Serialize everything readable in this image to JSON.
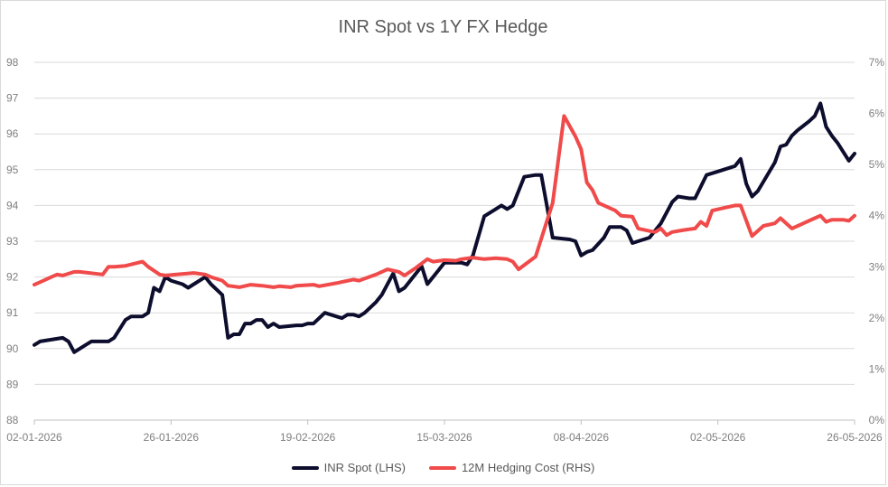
{
  "chart_data": {
    "type": "line",
    "title": "INR Spot vs 1Y FX Hedge",
    "x_tick_labels": [
      "02-01-2026",
      "26-01-2026",
      "19-02-2026",
      "15-03-2026",
      "08-04-2026",
      "02-05-2026",
      "26-05-2026"
    ],
    "x_range": [
      "2026-01-02",
      "2026-05-26"
    ],
    "y_left": {
      "min": 88,
      "max": 98,
      "step": 1,
      "ticks": [
        "88",
        "89",
        "90",
        "91",
        "92",
        "93",
        "94",
        "95",
        "96",
        "97",
        "98"
      ]
    },
    "y_right": {
      "min": 0,
      "max": 7,
      "step": 1,
      "ticks": [
        "0%",
        "1%",
        "2%",
        "3%",
        "4%",
        "5%",
        "6%",
        "7%"
      ]
    },
    "grid": "horizontal",
    "legend_position": "bottom-center",
    "series": [
      {
        "name": "INR Spot (LHS)",
        "axis": "left",
        "color": "#0d0d2e",
        "points": [
          [
            "2026-01-02",
            90.1
          ],
          [
            "2026-01-03",
            90.2
          ],
          [
            "2026-01-07",
            90.3
          ],
          [
            "2026-01-08",
            90.2
          ],
          [
            "2026-01-09",
            89.9
          ],
          [
            "2026-01-11",
            90.1
          ],
          [
            "2026-01-12",
            90.2
          ],
          [
            "2026-01-14",
            90.2
          ],
          [
            "2026-01-15",
            90.2
          ],
          [
            "2026-01-16",
            90.3
          ],
          [
            "2026-01-18",
            90.8
          ],
          [
            "2026-01-19",
            90.9
          ],
          [
            "2026-01-21",
            90.9
          ],
          [
            "2026-01-22",
            91.0
          ],
          [
            "2026-01-23",
            91.7
          ],
          [
            "2026-01-24",
            91.6
          ],
          [
            "2026-01-25",
            92.0
          ],
          [
            "2026-01-26",
            91.9
          ],
          [
            "2026-01-28",
            91.8
          ],
          [
            "2026-01-29",
            91.7
          ],
          [
            "2026-01-30",
            91.8
          ],
          [
            "2026-02-01",
            92.0
          ],
          [
            "2026-02-02",
            91.8
          ],
          [
            "2026-02-04",
            91.5
          ],
          [
            "2026-02-05",
            90.3
          ],
          [
            "2026-02-06",
            90.4
          ],
          [
            "2026-02-07",
            90.4
          ],
          [
            "2026-02-08",
            90.7
          ],
          [
            "2026-02-09",
            90.7
          ],
          [
            "2026-02-10",
            90.8
          ],
          [
            "2026-02-11",
            90.8
          ],
          [
            "2026-02-12",
            90.6
          ],
          [
            "2026-02-13",
            90.7
          ],
          [
            "2026-02-14",
            90.6
          ],
          [
            "2026-02-17",
            90.65
          ],
          [
            "2026-02-18",
            90.65
          ],
          [
            "2026-02-19",
            90.7
          ],
          [
            "2026-02-20",
            90.7
          ],
          [
            "2026-02-22",
            91.0
          ],
          [
            "2026-02-24",
            90.9
          ],
          [
            "2026-02-25",
            90.85
          ],
          [
            "2026-02-26",
            90.95
          ],
          [
            "2026-02-27",
            90.95
          ],
          [
            "2026-02-28",
            90.9
          ],
          [
            "2026-03-01",
            91.0
          ],
          [
            "2026-03-03",
            91.3
          ],
          [
            "2026-03-04",
            91.5
          ],
          [
            "2026-03-06",
            92.1
          ],
          [
            "2026-03-07",
            91.6
          ],
          [
            "2026-03-08",
            91.7
          ],
          [
            "2026-03-10",
            92.1
          ],
          [
            "2026-03-11",
            92.3
          ],
          [
            "2026-03-12",
            91.8
          ],
          [
            "2026-03-13",
            92.0
          ],
          [
            "2026-03-14",
            92.2
          ],
          [
            "2026-03-15",
            92.4
          ],
          [
            "2026-03-17",
            92.4
          ],
          [
            "2026-03-18",
            92.4
          ],
          [
            "2026-03-19",
            92.35
          ],
          [
            "2026-03-20",
            92.6
          ],
          [
            "2026-03-22",
            93.7
          ],
          [
            "2026-03-24",
            93.9
          ],
          [
            "2026-03-25",
            94.0
          ],
          [
            "2026-03-26",
            93.9
          ],
          [
            "2026-03-27",
            94.0
          ],
          [
            "2026-03-29",
            94.8
          ],
          [
            "2026-03-31",
            94.85
          ],
          [
            "2026-04-01",
            94.85
          ],
          [
            "2026-04-03",
            93.1
          ],
          [
            "2026-04-06",
            93.05
          ],
          [
            "2026-04-07",
            93.0
          ],
          [
            "2026-04-08",
            92.6
          ],
          [
            "2026-04-09",
            92.7
          ],
          [
            "2026-04-10",
            92.75
          ],
          [
            "2026-04-12",
            93.1
          ],
          [
            "2026-04-13",
            93.4
          ],
          [
            "2026-04-15",
            93.4
          ],
          [
            "2026-04-16",
            93.3
          ],
          [
            "2026-04-17",
            92.95
          ],
          [
            "2026-04-19",
            93.05
          ],
          [
            "2026-04-20",
            93.1
          ],
          [
            "2026-04-22",
            93.5
          ],
          [
            "2026-04-24",
            94.1
          ],
          [
            "2026-04-25",
            94.25
          ],
          [
            "2026-04-27",
            94.2
          ],
          [
            "2026-04-28",
            94.2
          ],
          [
            "2026-04-30",
            94.85
          ],
          [
            "2026-05-02",
            94.95
          ],
          [
            "2026-05-04",
            95.05
          ],
          [
            "2026-05-05",
            95.1
          ],
          [
            "2026-05-06",
            95.3
          ],
          [
            "2026-05-07",
            94.6
          ],
          [
            "2026-05-08",
            94.25
          ],
          [
            "2026-05-09",
            94.4
          ],
          [
            "2026-05-12",
            95.2
          ],
          [
            "2026-05-13",
            95.65
          ],
          [
            "2026-05-14",
            95.7
          ],
          [
            "2026-05-15",
            95.95
          ],
          [
            "2026-05-16",
            96.1
          ],
          [
            "2026-05-18",
            96.35
          ],
          [
            "2026-05-19",
            96.5
          ],
          [
            "2026-05-20",
            96.85
          ],
          [
            "2026-05-21",
            96.2
          ],
          [
            "2026-05-22",
            95.95
          ],
          [
            "2026-05-23",
            95.75
          ],
          [
            "2026-05-25",
            95.25
          ],
          [
            "2026-05-26",
            95.45
          ]
        ]
      },
      {
        "name": "12M Hedging Cost (RHS)",
        "axis": "right",
        "color": "#f04a4a",
        "points": [
          [
            "2026-01-02",
            2.65
          ],
          [
            "2026-01-03",
            2.7
          ],
          [
            "2026-01-05",
            2.8
          ],
          [
            "2026-01-06",
            2.85
          ],
          [
            "2026-01-07",
            2.83
          ],
          [
            "2026-01-09",
            2.9
          ],
          [
            "2026-01-10",
            2.9
          ],
          [
            "2026-01-14",
            2.85
          ],
          [
            "2026-01-15",
            3.0
          ],
          [
            "2026-01-16",
            3.0
          ],
          [
            "2026-01-18",
            3.02
          ],
          [
            "2026-01-21",
            3.1
          ],
          [
            "2026-01-22",
            3.0
          ],
          [
            "2026-01-24",
            2.85
          ],
          [
            "2026-01-25",
            2.83
          ],
          [
            "2026-01-27",
            2.85
          ],
          [
            "2026-01-30",
            2.88
          ],
          [
            "2026-02-01",
            2.85
          ],
          [
            "2026-02-02",
            2.8
          ],
          [
            "2026-02-04",
            2.73
          ],
          [
            "2026-02-05",
            2.63
          ],
          [
            "2026-02-07",
            2.6
          ],
          [
            "2026-02-09",
            2.65
          ],
          [
            "2026-02-11",
            2.63
          ],
          [
            "2026-02-13",
            2.6
          ],
          [
            "2026-02-14",
            2.62
          ],
          [
            "2026-02-16",
            2.6
          ],
          [
            "2026-02-17",
            2.63
          ],
          [
            "2026-02-20",
            2.65
          ],
          [
            "2026-02-21",
            2.62
          ],
          [
            "2026-02-24",
            2.68
          ],
          [
            "2026-02-27",
            2.75
          ],
          [
            "2026-02-28",
            2.73
          ],
          [
            "2026-03-03",
            2.85
          ],
          [
            "2026-03-05",
            2.95
          ],
          [
            "2026-03-07",
            2.9
          ],
          [
            "2026-03-08",
            2.83
          ],
          [
            "2026-03-10",
            2.98
          ],
          [
            "2026-03-12",
            3.15
          ],
          [
            "2026-03-13",
            3.1
          ],
          [
            "2026-03-15",
            3.13
          ],
          [
            "2026-03-17",
            3.12
          ],
          [
            "2026-03-18",
            3.15
          ],
          [
            "2026-03-20",
            3.18
          ],
          [
            "2026-03-22",
            3.15
          ],
          [
            "2026-03-24",
            3.17
          ],
          [
            "2026-03-26",
            3.15
          ],
          [
            "2026-03-27",
            3.1
          ],
          [
            "2026-03-28",
            2.95
          ],
          [
            "2026-03-31",
            3.2
          ],
          [
            "2026-04-03",
            4.25
          ],
          [
            "2026-04-05",
            5.95
          ],
          [
            "2026-04-07",
            5.55
          ],
          [
            "2026-04-08",
            5.3
          ],
          [
            "2026-04-09",
            4.65
          ],
          [
            "2026-04-10",
            4.5
          ],
          [
            "2026-04-11",
            4.25
          ],
          [
            "2026-04-14",
            4.1
          ],
          [
            "2026-04-15",
            4.0
          ],
          [
            "2026-04-17",
            3.98
          ],
          [
            "2026-04-18",
            3.75
          ],
          [
            "2026-04-20",
            3.7
          ],
          [
            "2026-04-21",
            3.68
          ],
          [
            "2026-04-22",
            3.75
          ],
          [
            "2026-04-23",
            3.62
          ],
          [
            "2026-04-24",
            3.68
          ],
          [
            "2026-04-26",
            3.72
          ],
          [
            "2026-04-28",
            3.75
          ],
          [
            "2026-04-29",
            3.88
          ],
          [
            "2026-04-30",
            3.8
          ],
          [
            "2026-05-01",
            4.1
          ],
          [
            "2026-05-03",
            4.15
          ],
          [
            "2026-05-05",
            4.2
          ],
          [
            "2026-05-06",
            4.2
          ],
          [
            "2026-05-08",
            3.6
          ],
          [
            "2026-05-10",
            3.8
          ],
          [
            "2026-05-12",
            3.85
          ],
          [
            "2026-05-13",
            3.95
          ],
          [
            "2026-05-15",
            3.75
          ],
          [
            "2026-05-17",
            3.85
          ],
          [
            "2026-05-19",
            3.95
          ],
          [
            "2026-05-20",
            4.0
          ],
          [
            "2026-05-21",
            3.88
          ],
          [
            "2026-05-22",
            3.92
          ],
          [
            "2026-05-24",
            3.92
          ],
          [
            "2026-05-25",
            3.9
          ],
          [
            "2026-05-26",
            4.0
          ]
        ]
      }
    ]
  }
}
